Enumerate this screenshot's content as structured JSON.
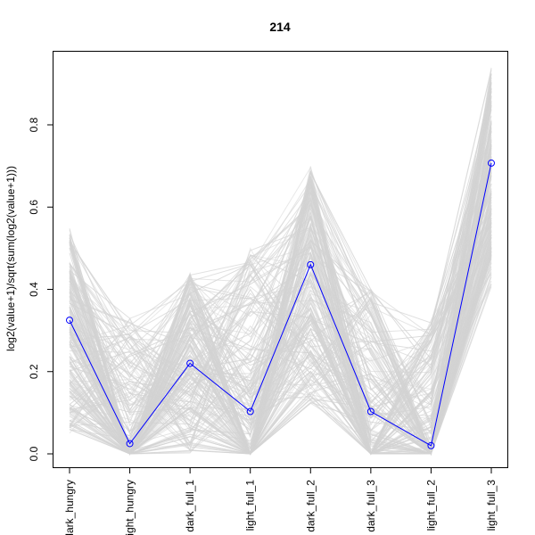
{
  "chart_data": {
    "type": "line",
    "title": "214",
    "xlabel": "",
    "ylabel": "log2(value+1)/sqrt(sum(log2(value+1)))",
    "categories": [
      "dark_hungry",
      "light_hungry",
      "dark_full_1",
      "light_full_1",
      "dark_full_2",
      "dark_full_3",
      "light_full_2",
      "light_full_3"
    ],
    "ylim": [
      -0.02,
      0.94
    ],
    "yticks": [
      0.0,
      0.2,
      0.4,
      0.6,
      0.8
    ],
    "ytick_labels": [
      "0.0",
      "0.2",
      "0.4",
      "0.6",
      "0.8"
    ],
    "grid": false,
    "series": [
      {
        "values": [
          0.325,
          0.025,
          0.22,
          0.103,
          0.46,
          0.103,
          0.02,
          0.707
        ],
        "color": "#0000ff",
        "markers": "open-circle"
      }
    ],
    "background_lines": {
      "color": "#d3d3d3",
      "description_count": 220
    }
  }
}
